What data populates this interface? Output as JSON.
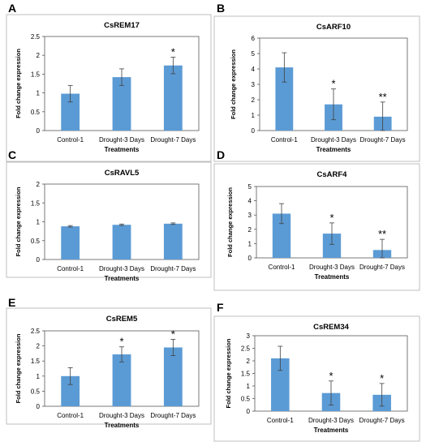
{
  "figure": {
    "panels": [
      "A",
      "B",
      "C",
      "D",
      "E",
      "F"
    ]
  },
  "chart_data": [
    {
      "panel": "A",
      "type": "bar",
      "title": "CsREM17",
      "xlabel": "Treatments",
      "ylabel": "Fold change expression",
      "categories": [
        "Control-1",
        "Drought-3 Days",
        "Drought-7 Days"
      ],
      "values": [
        0.98,
        1.42,
        1.73
      ],
      "errors": [
        0.22,
        0.22,
        0.22
      ],
      "significance": [
        "",
        "",
        "*"
      ],
      "ylim": [
        0,
        2.5
      ],
      "yticks": [
        "0",
        "0.5",
        "1",
        "1.5",
        "2",
        "2.5"
      ],
      "grid": false,
      "bar_color": "#5b9bd5"
    },
    {
      "panel": "B",
      "type": "bar",
      "title": "CsARF10",
      "xlabel": "Treatments",
      "ylabel": "Fold change expression",
      "categories": [
        "Control-1",
        "Drought-3 Days",
        "Drought-7 Days"
      ],
      "values": [
        4.1,
        1.7,
        0.9
      ],
      "errors": [
        0.95,
        1.0,
        0.95
      ],
      "significance": [
        "",
        "*",
        "**"
      ],
      "ylim": [
        0,
        6
      ],
      "yticks": [
        "0",
        "1",
        "2",
        "3",
        "4",
        "5",
        "6"
      ],
      "grid": false,
      "bar_color": "#5b9bd5"
    },
    {
      "panel": "C",
      "type": "bar",
      "title": "CsRAVL5",
      "xlabel": "Treatments",
      "ylabel": "Fold change expression",
      "categories": [
        "Control-1",
        "Drought-3 Days",
        "Drought-7 Days"
      ],
      "values": [
        0.88,
        0.92,
        0.95
      ],
      "errors": [
        0.02,
        0.02,
        0.02
      ],
      "significance": [
        "",
        "",
        ""
      ],
      "ylim": [
        0,
        2
      ],
      "yticks": [
        "0",
        "0.5",
        "1",
        "1.5",
        "2"
      ],
      "grid": false,
      "bar_color": "#5b9bd5"
    },
    {
      "panel": "D",
      "type": "bar",
      "title": "CsARF4",
      "xlabel": "Treatments",
      "ylabel": "Fold change expression",
      "categories": [
        "Control-1",
        "Drought-3 Days",
        "Drought-7 Days"
      ],
      "values": [
        3.1,
        1.7,
        0.55
      ],
      "errors": [
        0.7,
        0.75,
        0.75
      ],
      "significance": [
        "",
        "*",
        "**"
      ],
      "ylim": [
        0,
        5
      ],
      "yticks": [
        "0",
        "1",
        "2",
        "3",
        "4",
        "5"
      ],
      "grid": false,
      "bar_color": "#5b9bd5"
    },
    {
      "panel": "E",
      "type": "bar",
      "title": "CsREM5",
      "xlabel": "Treatments",
      "ylabel": "Fold change expression",
      "categories": [
        "Control-1",
        "Drought-3 Days",
        "Drought-7 Days"
      ],
      "values": [
        1.0,
        1.72,
        1.95
      ],
      "errors": [
        0.28,
        0.25,
        0.27
      ],
      "significance": [
        "",
        "*",
        "*"
      ],
      "ylim": [
        0,
        2.5
      ],
      "yticks": [
        "0",
        "0.5",
        "1",
        "1.5",
        "2",
        "2.5"
      ],
      "grid": false,
      "bar_color": "#5b9bd5"
    },
    {
      "panel": "F",
      "type": "bar",
      "title": "CsREM34",
      "xlabel": "Treatments",
      "ylabel": "Fold change expression",
      "categories": [
        "Control-1",
        "Drought-3 Days",
        "Drought-7 Days"
      ],
      "values": [
        2.1,
        0.72,
        0.65
      ],
      "errors": [
        0.48,
        0.48,
        0.45
      ],
      "significance": [
        "",
        "*",
        "*"
      ],
      "ylim": [
        0,
        3
      ],
      "yticks": [
        "0",
        "0.5",
        "1",
        "1.5",
        "2",
        "2.5",
        "3"
      ],
      "grid": false,
      "bar_color": "#5b9bd5"
    }
  ]
}
